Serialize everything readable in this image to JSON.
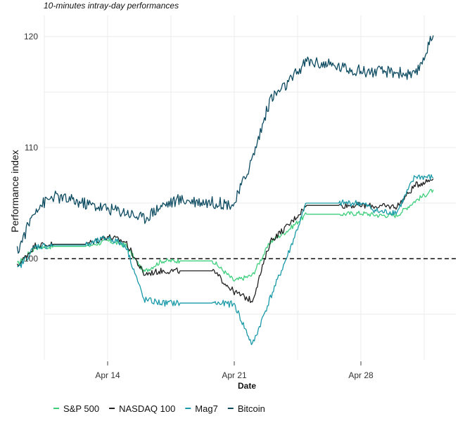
{
  "chart_data": {
    "type": "line",
    "subtitle": "10-minutes intray-day performances",
    "xlabel": "Date",
    "ylabel": "Performance index",
    "x_ticks": [
      "Apr 14",
      "Apr 21",
      "Apr 28"
    ],
    "x_range": [
      "2025-04-09",
      "2025-05-02"
    ],
    "y_ticks": [
      100,
      110,
      120
    ],
    "ylim": [
      91.0,
      121.0
    ],
    "reference_line": {
      "y": 100,
      "style": "dashed"
    },
    "grid": true,
    "legend_position": "bottom",
    "x_dates": [
      "2025-04-09",
      "2025-04-10",
      "2025-04-11",
      "2025-04-14",
      "2025-04-15",
      "2025-04-16",
      "2025-04-17",
      "2025-04-18",
      "2025-04-21",
      "2025-04-22",
      "2025-04-23",
      "2025-04-24",
      "2025-04-25",
      "2025-04-28",
      "2025-04-29",
      "2025-04-30",
      "2025-05-01",
      "2025-05-02"
    ],
    "series": [
      {
        "name": "S&P 500",
        "color": "#3ecf7c",
        "values": [
          99.5,
          101.0,
          101.1,
          101.6,
          101.2,
          98.8,
          99.8,
          99.8,
          98.0,
          98.5,
          101.5,
          102.6,
          104.0,
          104.1,
          103.9,
          103.9,
          105.2,
          106.2
        ]
      },
      {
        "name": "NASDAQ 100",
        "color": "#222222",
        "values": [
          99.3,
          101.2,
          101.3,
          102.0,
          101.5,
          98.6,
          98.9,
          98.9,
          97.0,
          96.2,
          101.6,
          103.0,
          104.8,
          104.8,
          104.7,
          104.7,
          106.6,
          107.2
        ]
      },
      {
        "name": "Mag7",
        "color": "#1a9aa8",
        "values": [
          99.0,
          101.1,
          101.2,
          101.9,
          101.2,
          96.3,
          96.0,
          96.0,
          95.9,
          92.2,
          96.5,
          100.5,
          105.0,
          105.0,
          104.2,
          104.2,
          107.4,
          107.3
        ]
      },
      {
        "name": "Bitcoin",
        "color": "#0e4c62",
        "values": [
          100.6,
          104.5,
          105.6,
          104.5,
          104.2,
          103.6,
          104.8,
          105.3,
          104.9,
          109.0,
          114.4,
          115.8,
          117.8,
          116.9,
          116.8,
          116.8,
          116.4,
          120.1
        ]
      }
    ]
  }
}
